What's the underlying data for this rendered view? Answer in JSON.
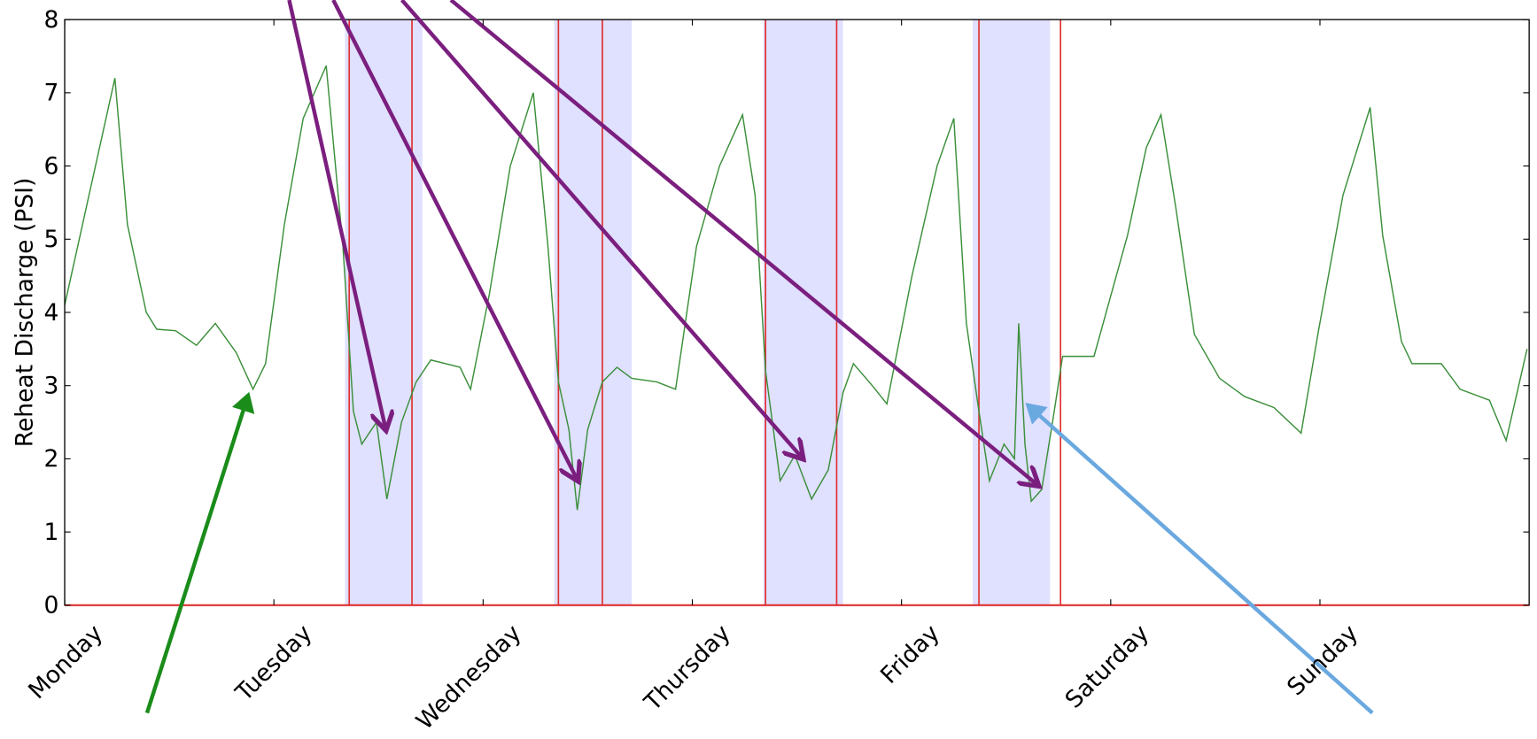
{
  "chart_data": {
    "type": "line",
    "y_label": "Reheat Discharge (PSI)",
    "xlim": [
      0,
      7
    ],
    "ylim": [
      0,
      8
    ],
    "xticks": [
      {
        "value": 0,
        "label": "Monday"
      },
      {
        "value": 1,
        "label": "Tuesday"
      },
      {
        "value": 2,
        "label": "Wednesday"
      },
      {
        "value": 3,
        "label": "Thursday"
      },
      {
        "value": 4,
        "label": "Friday"
      },
      {
        "value": 5,
        "label": "Saturday"
      },
      {
        "value": 6,
        "label": "Sunday"
      }
    ],
    "yticks": [
      0,
      1,
      2,
      3,
      4,
      5,
      6,
      7,
      8
    ],
    "color": "#3a8f3a",
    "x": [
      0,
      0.24,
      0.3,
      0.39,
      0.44,
      0.53,
      0.63,
      0.72,
      0.82,
      0.9,
      0.96,
      1.05,
      1.14,
      1.25,
      1.33,
      1.38,
      1.42,
      1.49,
      1.54,
      1.61,
      1.68,
      1.75,
      1.89,
      1.94,
      2.03,
      2.13,
      2.24,
      2.31,
      2.36,
      2.41,
      2.45,
      2.5,
      2.57,
      2.64,
      2.71,
      2.83,
      2.92,
      3.02,
      3.13,
      3.24,
      3.3,
      3.35,
      3.42,
      3.49,
      3.57,
      3.65,
      3.72,
      3.77,
      3.86,
      3.93,
      4.05,
      4.17,
      4.25,
      4.31,
      4.37,
      4.42,
      4.49,
      4.54,
      4.56,
      4.59,
      4.62,
      4.67,
      4.73,
      4.77,
      4.92,
      5.08,
      5.17,
      5.24,
      5.31,
      5.4,
      5.52,
      5.64,
      5.78,
      5.91,
      5.99,
      6.11,
      6.24,
      6.3,
      6.39,
      6.44,
      6.58,
      6.67,
      6.81,
      6.89,
      6.99
    ],
    "values": [
      4.1,
      7.2,
      5.2,
      4.0,
      3.77,
      3.75,
      3.55,
      3.85,
      3.45,
      2.95,
      3.3,
      5.2,
      6.65,
      7.37,
      4.9,
      2.65,
      2.2,
      2.5,
      1.45,
      2.5,
      3.05,
      3.35,
      3.25,
      2.95,
      4.25,
      6.0,
      7.0,
      4.9,
      3.05,
      2.4,
      1.3,
      2.4,
      3.05,
      3.25,
      3.1,
      3.05,
      2.95,
      4.9,
      6.0,
      6.7,
      5.6,
      3.2,
      1.7,
      2.05,
      1.45,
      1.85,
      2.9,
      3.3,
      3.0,
      2.75,
      4.5,
      6.0,
      6.65,
      3.85,
      2.65,
      1.7,
      2.2,
      2.0,
      3.85,
      2.2,
      1.42,
      1.58,
      2.65,
      3.4,
      3.4,
      5.05,
      6.25,
      6.7,
      5.45,
      3.7,
      3.1,
      2.85,
      2.7,
      2.35,
      3.7,
      5.6,
      6.8,
      5.05,
      3.6,
      3.3,
      3.3,
      2.95,
      2.8,
      2.25,
      3.5
    ],
    "shaded_spans": [
      [
        1.34,
        1.71
      ],
      [
        2.34,
        2.71
      ],
      [
        3.34,
        3.72
      ],
      [
        4.34,
        4.71
      ]
    ],
    "shade_color": "#e0e0ff",
    "event_lines": [
      1.36,
      1.66,
      2.36,
      2.57,
      3.35,
      3.69,
      4.37,
      4.76
    ],
    "event_color": "#e03030"
  }
}
